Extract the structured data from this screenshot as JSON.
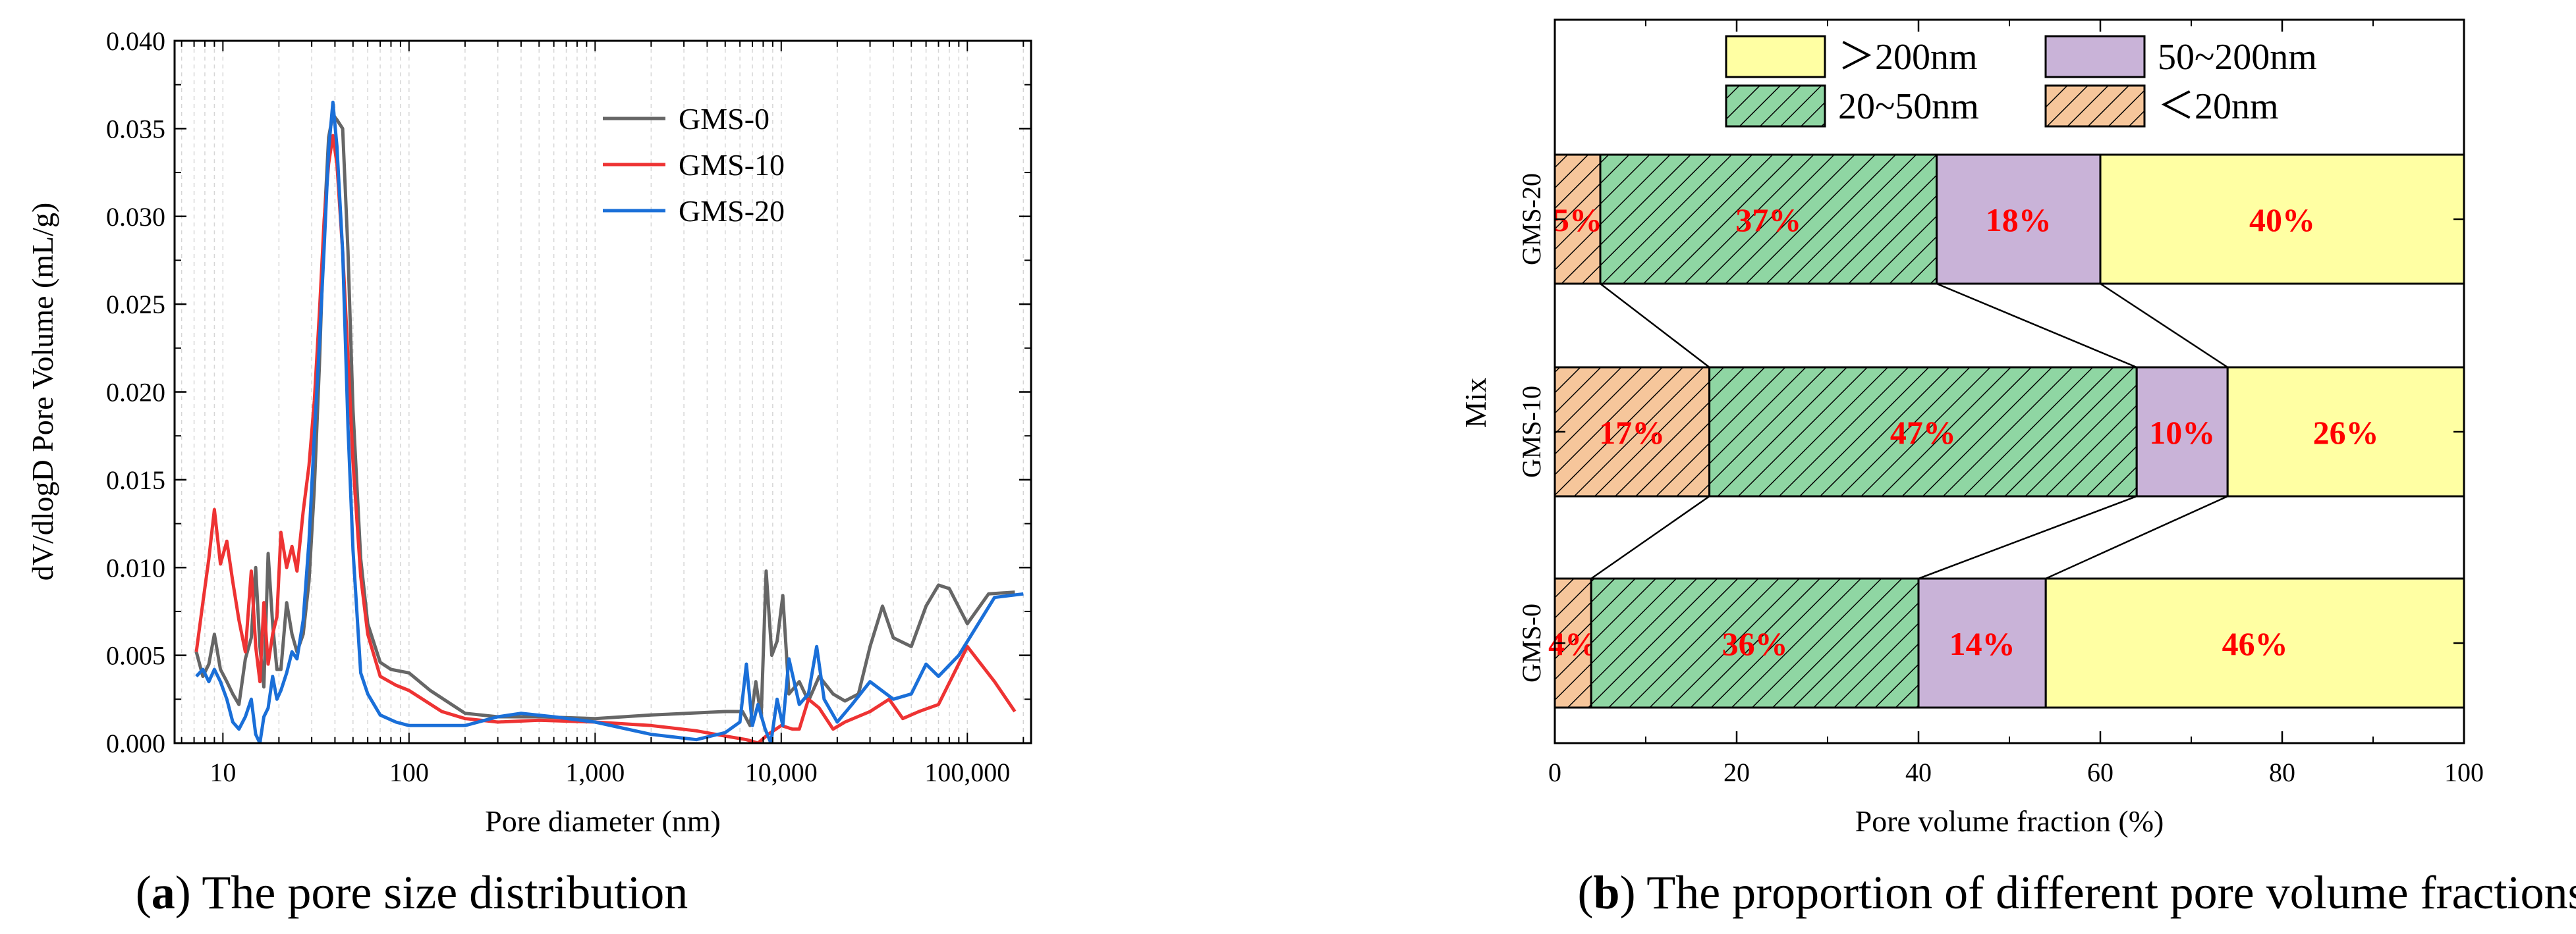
{
  "chart_data": [
    {
      "type": "line",
      "panel": "a",
      "caption_letter": "a",
      "caption_text": " The pore size distribution",
      "xlabel": "Pore diameter (nm)",
      "ylabel": "dV/dlogD Pore Volume (mL/g)",
      "xscale": "log",
      "xlim": [
        5.5,
        220000
      ],
      "ylim": [
        0,
        0.04
      ],
      "x_ticks": [
        10,
        100,
        1000,
        10000,
        100000
      ],
      "x_tick_labels": [
        "10",
        "100",
        "1,000",
        "10,000",
        "100,000"
      ],
      "y_ticks": [
        0,
        0.005,
        0.01,
        0.015,
        0.02,
        0.025,
        0.03,
        0.035,
        0.04
      ],
      "y_tick_labels": [
        "0.000",
        "0.005",
        "0.010",
        "0.015",
        "0.020",
        "0.025",
        "0.030",
        "0.035",
        "0.040"
      ],
      "grid": true,
      "legend_position": "top-right",
      "series": [
        {
          "name": "GMS-0",
          "color": "#666666",
          "points": [
            [
              7.2,
              0.0052
            ],
            [
              7.8,
              0.0038
            ],
            [
              8.4,
              0.0045
            ],
            [
              9.0,
              0.0062
            ],
            [
              9.7,
              0.0042
            ],
            [
              10.5,
              0.0035
            ],
            [
              11.3,
              0.0028
            ],
            [
              12.2,
              0.0022
            ],
            [
              13.2,
              0.0048
            ],
            [
              14.2,
              0.006
            ],
            [
              15.0,
              0.01
            ],
            [
              15.8,
              0.0055
            ],
            [
              16.6,
              0.0032
            ],
            [
              17.5,
              0.0108
            ],
            [
              18.5,
              0.0068
            ],
            [
              19.5,
              0.0042
            ],
            [
              20.5,
              0.0042
            ],
            [
              22.0,
              0.008
            ],
            [
              23.5,
              0.0062
            ],
            [
              25.0,
              0.0052
            ],
            [
              27.0,
              0.0062
            ],
            [
              29.0,
              0.0092
            ],
            [
              31.0,
              0.0145
            ],
            [
              33.0,
              0.0215
            ],
            [
              35.0,
              0.0295
            ],
            [
              37.0,
              0.0345
            ],
            [
              39.0,
              0.0358
            ],
            [
              41.0,
              0.0355
            ],
            [
              44.0,
              0.035
            ],
            [
              47.0,
              0.028
            ],
            [
              50.0,
              0.019
            ],
            [
              55.0,
              0.0105
            ],
            [
              60.0,
              0.0068
            ],
            [
              70.0,
              0.0046
            ],
            [
              80.0,
              0.0042
            ],
            [
              100.0,
              0.004
            ],
            [
              130.0,
              0.003
            ],
            [
              200.0,
              0.0017
            ],
            [
              300.0,
              0.0015
            ],
            [
              500.0,
              0.0015
            ],
            [
              1000.0,
              0.0014
            ],
            [
              2000.0,
              0.0016
            ],
            [
              5000.0,
              0.0018
            ],
            [
              6200.0,
              0.0018
            ],
            [
              6800.0,
              0.001
            ],
            [
              7300.0,
              0.0035
            ],
            [
              7800.0,
              0.0015
            ],
            [
              8300.0,
              0.0098
            ],
            [
              8900.0,
              0.005
            ],
            [
              9500.0,
              0.0058
            ],
            [
              10200.0,
              0.0084
            ],
            [
              11000.0,
              0.0028
            ],
            [
              12500.0,
              0.0035
            ],
            [
              14000.0,
              0.0024
            ],
            [
              16000.0,
              0.0038
            ],
            [
              19000.0,
              0.0028
            ],
            [
              22000.0,
              0.0024
            ],
            [
              26000.0,
              0.0028
            ],
            [
              30000.0,
              0.0055
            ],
            [
              35000.0,
              0.0078
            ],
            [
              40000.0,
              0.006
            ],
            [
              50000.0,
              0.0055
            ],
            [
              60000.0,
              0.0078
            ],
            [
              70000.0,
              0.009
            ],
            [
              80000.0,
              0.0088
            ],
            [
              100000.0,
              0.0068
            ],
            [
              130000.0,
              0.0085
            ],
            [
              180000.0,
              0.0086
            ]
          ]
        },
        {
          "name": "GMS-10",
          "color": "#ee3333",
          "points": [
            [
              7.2,
              0.0052
            ],
            [
              7.8,
              0.008
            ],
            [
              8.4,
              0.0105
            ],
            [
              9.0,
              0.0133
            ],
            [
              9.7,
              0.0102
            ],
            [
              10.5,
              0.0115
            ],
            [
              11.3,
              0.0092
            ],
            [
              12.2,
              0.007
            ],
            [
              13.2,
              0.0052
            ],
            [
              14.2,
              0.0098
            ],
            [
              15.0,
              0.0055
            ],
            [
              15.8,
              0.0035
            ],
            [
              16.6,
              0.008
            ],
            [
              17.5,
              0.0045
            ],
            [
              18.5,
              0.0062
            ],
            [
              19.5,
              0.0072
            ],
            [
              20.5,
              0.012
            ],
            [
              22.0,
              0.01
            ],
            [
              23.5,
              0.0112
            ],
            [
              25.0,
              0.0098
            ],
            [
              27.0,
              0.0132
            ],
            [
              29.0,
              0.0158
            ],
            [
              31.0,
              0.0195
            ],
            [
              33.0,
              0.0245
            ],
            [
              35.0,
              0.0298
            ],
            [
              37.0,
              0.033
            ],
            [
              39.0,
              0.0346
            ],
            [
              41.0,
              0.033
            ],
            [
              44.0,
              0.028
            ],
            [
              47.0,
              0.022
            ],
            [
              50.0,
              0.016
            ],
            [
              55.0,
              0.0095
            ],
            [
              60.0,
              0.0062
            ],
            [
              70.0,
              0.0038
            ],
            [
              85.0,
              0.0033
            ],
            [
              100.0,
              0.003
            ],
            [
              150.0,
              0.0018
            ],
            [
              200.0,
              0.0014
            ],
            [
              300.0,
              0.0012
            ],
            [
              500.0,
              0.0013
            ],
            [
              1000.0,
              0.0012
            ],
            [
              2000.0,
              0.001
            ],
            [
              3500.0,
              0.0007
            ],
            [
              5000.0,
              0.0004
            ],
            [
              6500.0,
              0.0002
            ],
            [
              7500.0,
              0.0
            ],
            [
              8500.0,
              0.0005
            ],
            [
              10000.0,
              0.001
            ],
            [
              11500.0,
              0.0008
            ],
            [
              12500.0,
              0.0008
            ],
            [
              14000.0,
              0.0025
            ],
            [
              16000.0,
              0.002
            ],
            [
              19000.0,
              0.0008
            ],
            [
              22000.0,
              0.0012
            ],
            [
              30000.0,
              0.0018
            ],
            [
              38000.0,
              0.0025
            ],
            [
              45000.0,
              0.0014
            ],
            [
              55000.0,
              0.0018
            ],
            [
              70000.0,
              0.0022
            ],
            [
              100000.0,
              0.0055
            ],
            [
              140000.0,
              0.0035
            ],
            [
              180000.0,
              0.0018
            ]
          ]
        },
        {
          "name": "GMS-20",
          "color": "#1a6fd8",
          "points": [
            [
              7.2,
              0.0038
            ],
            [
              7.8,
              0.0042
            ],
            [
              8.4,
              0.0035
            ],
            [
              9.0,
              0.0042
            ],
            [
              9.7,
              0.0035
            ],
            [
              10.5,
              0.0025
            ],
            [
              11.3,
              0.0012
            ],
            [
              12.2,
              0.0008
            ],
            [
              13.2,
              0.0015
            ],
            [
              14.2,
              0.0025
            ],
            [
              15.0,
              0.0005
            ],
            [
              15.8,
              0.0
            ],
            [
              16.6,
              0.0015
            ],
            [
              17.5,
              0.002
            ],
            [
              18.5,
              0.0038
            ],
            [
              19.5,
              0.0025
            ],
            [
              20.5,
              0.003
            ],
            [
              22.0,
              0.004
            ],
            [
              23.5,
              0.0052
            ],
            [
              25.0,
              0.0048
            ],
            [
              27.0,
              0.007
            ],
            [
              29.0,
              0.0115
            ],
            [
              31.0,
              0.0175
            ],
            [
              33.0,
              0.0228
            ],
            [
              35.0,
              0.0282
            ],
            [
              37.0,
              0.0338
            ],
            [
              39.0,
              0.0365
            ],
            [
              41.0,
              0.034
            ],
            [
              44.0,
              0.028
            ],
            [
              47.0,
              0.018
            ],
            [
              50.0,
              0.011
            ],
            [
              55.0,
              0.004
            ],
            [
              60.0,
              0.0028
            ],
            [
              70.0,
              0.0016
            ],
            [
              85.0,
              0.0012
            ],
            [
              100.0,
              0.001
            ],
            [
              150.0,
              0.001
            ],
            [
              200.0,
              0.001
            ],
            [
              300.0,
              0.0015
            ],
            [
              400.0,
              0.0017
            ],
            [
              600.0,
              0.0015
            ],
            [
              1000.0,
              0.0012
            ],
            [
              2000.0,
              0.0005
            ],
            [
              3500.0,
              0.0002
            ],
            [
              5000.0,
              0.0006
            ],
            [
              6000.0,
              0.0012
            ],
            [
              6500.0,
              0.0045
            ],
            [
              7000.0,
              0.001
            ],
            [
              7500.0,
              0.0022
            ],
            [
              8200.0,
              0.0008
            ],
            [
              8800.0,
              0.0
            ],
            [
              9500.0,
              0.0025
            ],
            [
              10200.0,
              0.001
            ],
            [
              11000.0,
              0.0048
            ],
            [
              12500.0,
              0.0022
            ],
            [
              14000.0,
              0.0028
            ],
            [
              15500.0,
              0.0055
            ],
            [
              17000.0,
              0.0025
            ],
            [
              20000.0,
              0.0012
            ],
            [
              24000.0,
              0.0022
            ],
            [
              30000.0,
              0.0035
            ],
            [
              40000.0,
              0.0025
            ],
            [
              50000.0,
              0.0028
            ],
            [
              60000.0,
              0.0045
            ],
            [
              70000.0,
              0.0038
            ],
            [
              90000.0,
              0.005
            ],
            [
              110000.0,
              0.0065
            ],
            [
              140000.0,
              0.0083
            ],
            [
              200000.0,
              0.0085
            ]
          ]
        }
      ]
    },
    {
      "type": "bar",
      "orientation": "horizontal",
      "stacked": true,
      "panel": "b",
      "caption_letter": "b",
      "caption_text": " The proportion of different pore volume fractions",
      "xlabel": "Pore volume fraction (%)",
      "ylabel": "Mix",
      "xlim": [
        0,
        100
      ],
      "x_ticks": [
        0,
        20,
        40,
        60,
        80,
        100
      ],
      "x_tick_labels": [
        "0",
        "20",
        "40",
        "60",
        "80",
        "100"
      ],
      "categories": [
        "GMS-20",
        "GMS-10",
        "GMS-0"
      ],
      "legend_position": "top",
      "legend_order": [
        3,
        2,
        1,
        0
      ],
      "series": [
        {
          "name": "＜20nm",
          "color": "#f6c69b",
          "pattern": "hatch",
          "values": [
            5,
            17,
            4
          ],
          "labels": [
            "5%",
            "17%",
            "4%"
          ]
        },
        {
          "name": "20~50nm",
          "color": "#8fd6a3",
          "pattern": "hatch",
          "values": [
            37,
            47,
            36
          ],
          "labels": [
            "37%",
            "47%",
            "36%"
          ]
        },
        {
          "name": "50~200nm",
          "color": "#c9b3d8",
          "pattern": "solid",
          "values": [
            18,
            10,
            14
          ],
          "labels": [
            "18%",
            "10%",
            "14%"
          ]
        },
        {
          "name": "＞200nm",
          "color": "#ffffa3",
          "pattern": "solid",
          "values": [
            40,
            26,
            46
          ],
          "labels": [
            "40%",
            "26%",
            "46%"
          ]
        }
      ]
    }
  ]
}
